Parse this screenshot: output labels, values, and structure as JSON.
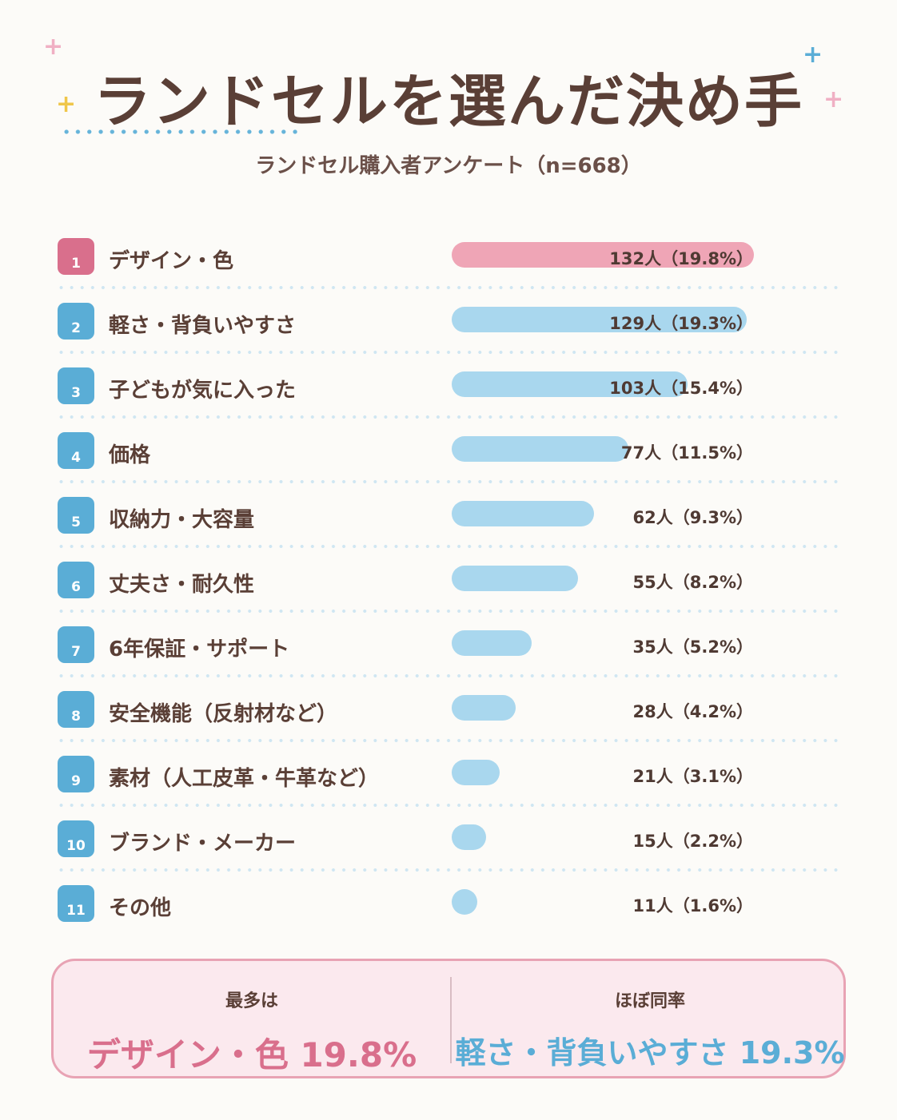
{
  "title": "ランドセルを選んだ決め手",
  "subtitle": "ランドセル購入者アンケート（n=668）",
  "colors": {
    "text": "#5a3f36",
    "top_accent": "#d96f8c",
    "top_bar": "#efa5b6",
    "accent": "#5aadd6",
    "bar": "#a9d7ee",
    "summary_bg": "#fbe9ee",
    "summary_border": "#e8a3b4"
  },
  "chart_data": {
    "type": "bar",
    "orientation": "horizontal",
    "max_value": 132,
    "items": [
      {
        "rank": "1",
        "label": "デザイン・色",
        "value": 132,
        "percent": 19.8,
        "value_label": "132人（19.8%）"
      },
      {
        "rank": "2",
        "label": "軽さ・背負いやすさ",
        "value": 129,
        "percent": 19.3,
        "value_label": "129人（19.3%）"
      },
      {
        "rank": "3",
        "label": "子どもが気に入った",
        "value": 103,
        "percent": 15.4,
        "value_label": "103人（15.4%）"
      },
      {
        "rank": "4",
        "label": "価格",
        "value": 77,
        "percent": 11.5,
        "value_label": "77人（11.5%）"
      },
      {
        "rank": "5",
        "label": "収納力・大容量",
        "value": 62,
        "percent": 9.3,
        "value_label": "62人（9.3%）"
      },
      {
        "rank": "6",
        "label": "丈夫さ・耐久性",
        "value": 55,
        "percent": 8.2,
        "value_label": "55人（8.2%）"
      },
      {
        "rank": "7",
        "label": "6年保証・サポート",
        "value": 35,
        "percent": 5.2,
        "value_label": "35人（5.2%）"
      },
      {
        "rank": "8",
        "label": "安全機能（反射材など）",
        "value": 28,
        "percent": 4.2,
        "value_label": "28人（4.2%）"
      },
      {
        "rank": "9",
        "label": "素材（人工皮革・牛革など）",
        "value": 21,
        "percent": 3.1,
        "value_label": "21人（3.1%）"
      },
      {
        "rank": "10",
        "label": "ブランド・メーカー",
        "value": 15,
        "percent": 2.2,
        "value_label": "15人（2.2%）"
      },
      {
        "rank": "11",
        "label": "その他",
        "value": 11,
        "percent": 1.6,
        "value_label": "11人（1.6%）"
      }
    ]
  },
  "summary": {
    "left_caption": "最多は",
    "left_value": "デザイン・色 19.8%",
    "right_caption": "ほぼ同率",
    "right_value": "軽さ・背負いやすさ 19.3%"
  },
  "decorations": {
    "sparkle_glyph": "+",
    "sparkle_colors": [
      "#f0b0c4",
      "#5aadd6",
      "#efc64a"
    ]
  }
}
